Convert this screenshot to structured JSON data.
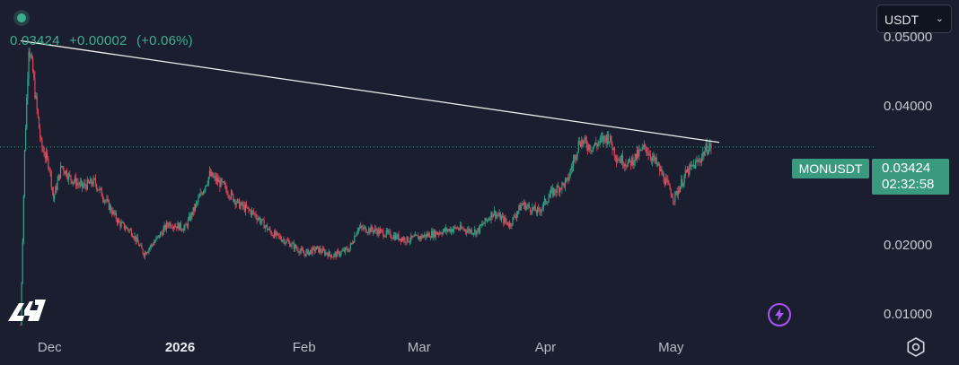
{
  "header": {
    "last_price": "0.03424",
    "change_abs": "+0.00002",
    "change_pct": "(+0.06%)"
  },
  "currency": {
    "selected": "USDT"
  },
  "tags": {
    "symbol": "MONUSDT",
    "price": "0.03424",
    "countdown": "02:32:58"
  },
  "icons": {
    "status": "live-status-dot",
    "currency_chevron": "chevron-down-icon",
    "logo": "tradingview-logo",
    "bolt": "lightning-icon",
    "settings": "gear-icon"
  },
  "colors": {
    "background": "#1b1e2e",
    "up": "#2fa58a",
    "down": "#e0445a",
    "accent": "#3a9a80",
    "trendline": "#f2f2f2",
    "bolt": "#a855f7"
  },
  "chart_data": {
    "type": "candlestick",
    "symbol": "MONUSDT",
    "quote_currency": "USDT",
    "y_axis": {
      "ticks": [
        0.05,
        0.04,
        0.02,
        0.01
      ],
      "tick_labels": [
        "0.05000",
        "0.04000",
        "0.02000",
        "0.01000"
      ],
      "ylim": [
        0.0075,
        0.0555
      ]
    },
    "x_axis": {
      "ticks": [
        "2025-12-01",
        "2026-01-01",
        "2026-02-01",
        "2026-03-01",
        "2026-04-01",
        "2026-05-01",
        "2026-05-09"
      ],
      "tick_labels": [
        "Dec",
        "2026",
        "Feb",
        "Mar",
        "Apr",
        "May",
        ""
      ],
      "xlim": [
        "2025-11-19",
        "2026-06-20"
      ]
    },
    "approx_price_path": [
      [
        "2025-11-24",
        0.0085
      ],
      [
        "2025-11-25",
        0.0335
      ],
      [
        "2025-11-26",
        0.049
      ],
      [
        "2025-11-27",
        0.045
      ],
      [
        "2025-11-28",
        0.0395
      ],
      [
        "2025-11-29",
        0.0345
      ],
      [
        "2025-12-01",
        0.0315
      ],
      [
        "2025-12-02",
        0.0268
      ],
      [
        "2025-12-04",
        0.0315
      ],
      [
        "2025-12-06",
        0.0298
      ],
      [
        "2025-12-09",
        0.0285
      ],
      [
        "2025-12-12",
        0.0292
      ],
      [
        "2025-12-15",
        0.0262
      ],
      [
        "2025-12-18",
        0.0232
      ],
      [
        "2025-12-21",
        0.022
      ],
      [
        "2025-12-24",
        0.0188
      ],
      [
        "2025-12-27",
        0.0208
      ],
      [
        "2025-12-30",
        0.0232
      ],
      [
        "2026-01-03",
        0.0225
      ],
      [
        "2026-01-06",
        0.0262
      ],
      [
        "2026-01-09",
        0.0302
      ],
      [
        "2026-01-12",
        0.0288
      ],
      [
        "2026-01-16",
        0.026
      ],
      [
        "2026-01-20",
        0.0245
      ],
      [
        "2026-01-24",
        0.0218
      ],
      [
        "2026-01-28",
        0.0205
      ],
      [
        "2026-02-01",
        0.0188
      ],
      [
        "2026-02-04",
        0.0195
      ],
      [
        "2026-02-08",
        0.0185
      ],
      [
        "2026-02-12",
        0.0195
      ],
      [
        "2026-02-14",
        0.0225
      ],
      [
        "2026-02-18",
        0.0222
      ],
      [
        "2026-02-22",
        0.0215
      ],
      [
        "2026-02-26",
        0.0208
      ],
      [
        "2026-03-01",
        0.0212
      ],
      [
        "2026-03-05",
        0.0218
      ],
      [
        "2026-03-10",
        0.0225
      ],
      [
        "2026-03-15",
        0.022
      ],
      [
        "2026-03-19",
        0.0248
      ],
      [
        "2026-03-23",
        0.023
      ],
      [
        "2026-03-26",
        0.026
      ],
      [
        "2026-03-30",
        0.0248
      ],
      [
        "2026-04-02",
        0.0275
      ],
      [
        "2026-04-06",
        0.0292
      ],
      [
        "2026-04-09",
        0.0352
      ],
      [
        "2026-04-12",
        0.0342
      ],
      [
        "2026-04-16",
        0.0358
      ],
      [
        "2026-04-18",
        0.0328
      ],
      [
        "2026-04-21",
        0.0318
      ],
      [
        "2026-04-25",
        0.0342
      ],
      [
        "2026-04-28",
        0.0315
      ],
      [
        "2026-05-02",
        0.0268
      ],
      [
        "2026-05-05",
        0.0305
      ],
      [
        "2026-05-08",
        0.0322
      ],
      [
        "2026-05-10",
        0.0342
      ],
      [
        "2026-05-11",
        0.03424
      ]
    ],
    "trendline": [
      [
        "2025-11-24",
        0.0496
      ],
      [
        "2026-05-13",
        0.0349
      ]
    ],
    "last_price": 0.03424
  }
}
